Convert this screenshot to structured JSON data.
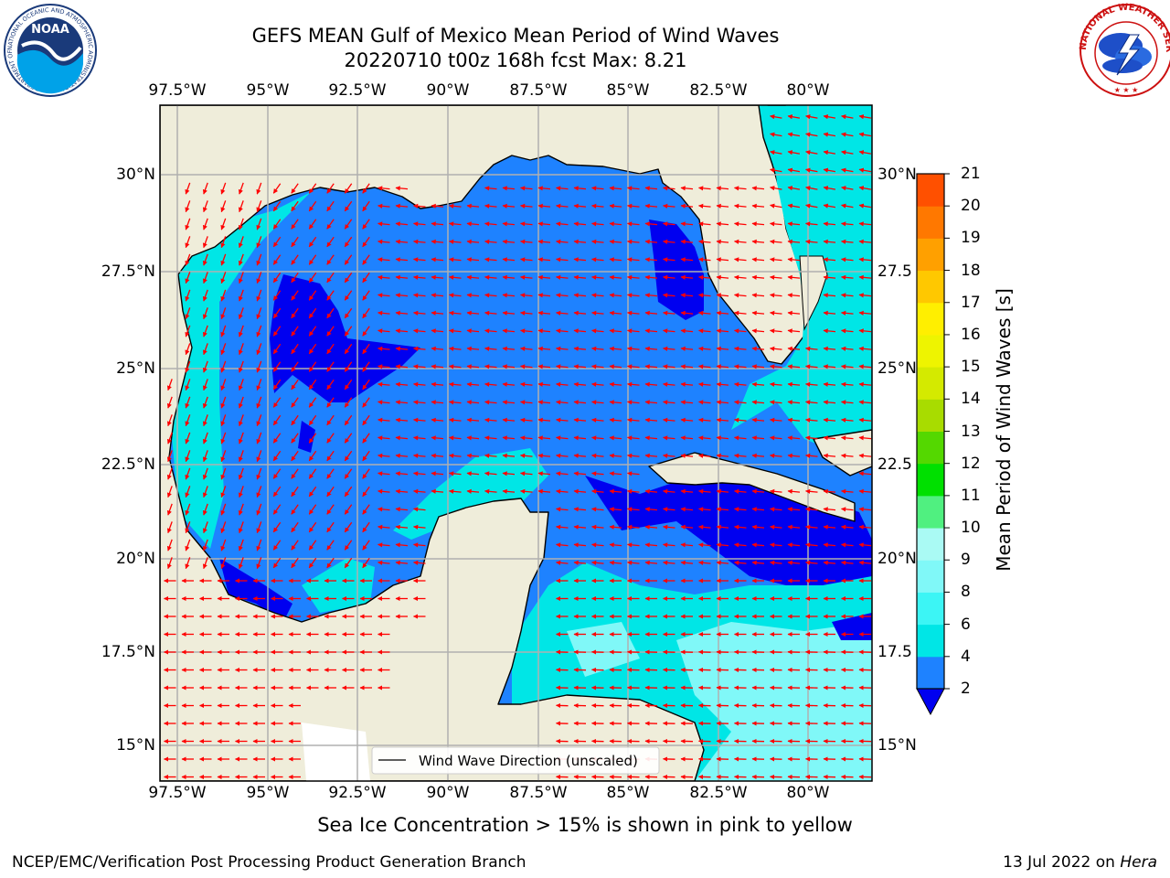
{
  "title": {
    "line1": "GEFS MEAN Gulf of Mexico Mean Period of Wind Waves",
    "line2": "20220710 t00z 168h fcst   Max: 8.21"
  },
  "map": {
    "x_ticks_top": [
      "97.5°W",
      "95°W",
      "92.5°W",
      "90°W",
      "87.5°W",
      "85°W",
      "82.5°W",
      "80°W"
    ],
    "x_ticks_bottom": [
      "97.5°W",
      "95°W",
      "92.5°W",
      "90°W",
      "87.5°W",
      "85°W",
      "82.5°W",
      "80°W"
    ],
    "y_ticks_left": [
      "30°N",
      "27.5°N",
      "25°N",
      "22.5°N",
      "20°N",
      "17.5°N",
      "15°N"
    ],
    "y_ticks_right": [
      "30°N",
      "27.5",
      "25°N",
      "22.5",
      "20°N",
      "17.5",
      "15°N"
    ],
    "lon_range": [
      -98,
      -78.2
    ],
    "lat_range": [
      14,
      31.6
    ],
    "legend_label": "Wind Wave Direction (unscaled)",
    "legend_placement": "bottom-right",
    "arrow_color": "#ff0000",
    "land_color": "#efedda",
    "grid": true
  },
  "colorbar": {
    "label": "Mean Period of Wind Waves [s]",
    "ticks": [
      "2",
      "4",
      "6",
      "8",
      "9",
      "10",
      "11",
      "12",
      "13",
      "14",
      "15",
      "16",
      "17",
      "18",
      "19",
      "20",
      "21"
    ],
    "colors": [
      "#1e82ff",
      "#00e6e6",
      "#3cf5f5",
      "#80f8f8",
      "#aafaf4",
      "#50f080",
      "#00e000",
      "#54d800",
      "#a8dc00",
      "#d4ea00",
      "#eef400",
      "#ffef00",
      "#ffc800",
      "#ffa000",
      "#ff7800",
      "#ff5000",
      "#ff2800",
      "#ff0000"
    ],
    "under_color": "#0000f0"
  },
  "subtitle": "Sea Ice Concentration > 15% is shown in pink to yellow",
  "footer": {
    "left": "NCEP/EMC/Verification Post Processing Product Generation Branch",
    "date": "13 Jul 2022 on ",
    "host": "Hera"
  },
  "logos": {
    "noaa_text": "NOAA",
    "noaa_ring": "NATIONAL OCEANIC AND ATMOSPHERIC ADMINISTRATION · U.S. DEPARTMENT OF COMMERCE ·",
    "nws_ring": "NATIONAL WEATHER SERVICE"
  }
}
